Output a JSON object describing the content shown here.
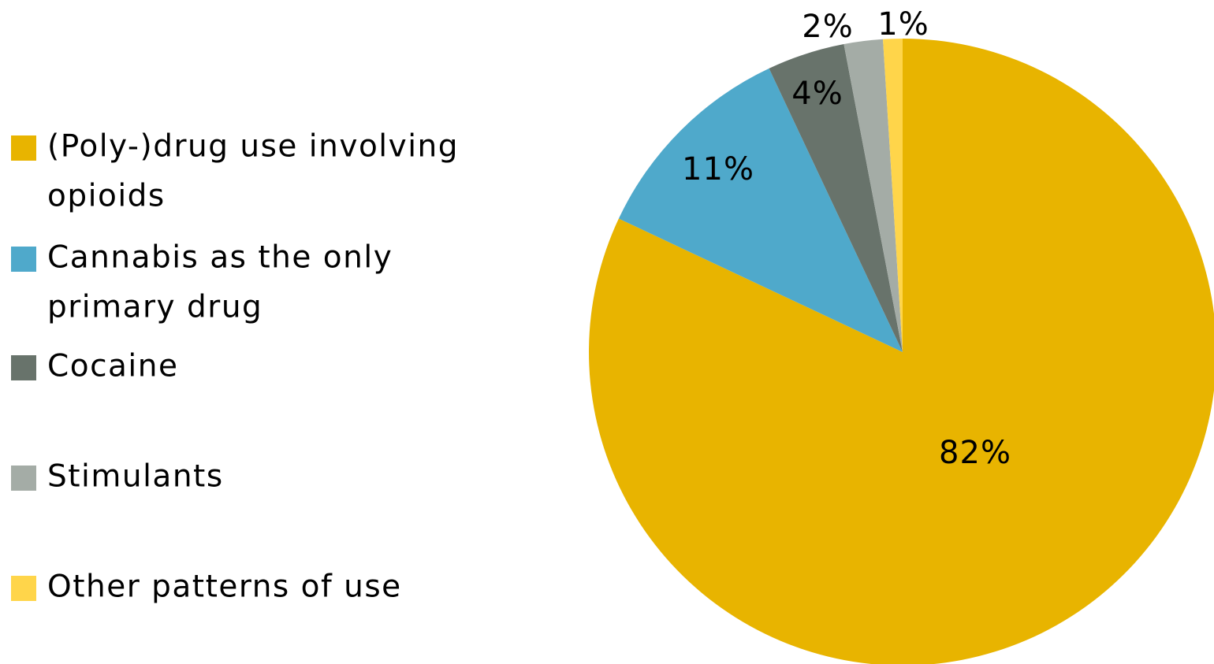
{
  "chart_data": {
    "type": "pie",
    "title": "",
    "legend_position": "left",
    "start_angle": "12 o'clock",
    "direction": "clockwise",
    "slices": [
      {
        "label": "(Poly-)drug use involving opioids",
        "value": 82,
        "data_label": "82%",
        "color": "#e8b400",
        "legend_lines": [
          "(Poly-)drug use involving",
          "opioids"
        ]
      },
      {
        "label": "Cannabis as the only primary drug",
        "value": 11,
        "data_label": "11%",
        "color": "#4fa9cb",
        "legend_lines": [
          "Cannabis as the only",
          "primary drug"
        ]
      },
      {
        "label": "Cocaine",
        "value": 4,
        "data_label": "4%",
        "color": "#68736b",
        "legend_lines": [
          "Cocaine"
        ]
      },
      {
        "label": "Stimulants",
        "value": 2,
        "data_label": "2%",
        "color": "#a4aca6",
        "legend_lines": [
          "Stimulants"
        ]
      },
      {
        "label": "Other patterns of use",
        "value": 1,
        "data_label": "1%",
        "color": "#ffd54a",
        "legend_lines": [
          "Other patterns of use"
        ]
      }
    ]
  }
}
